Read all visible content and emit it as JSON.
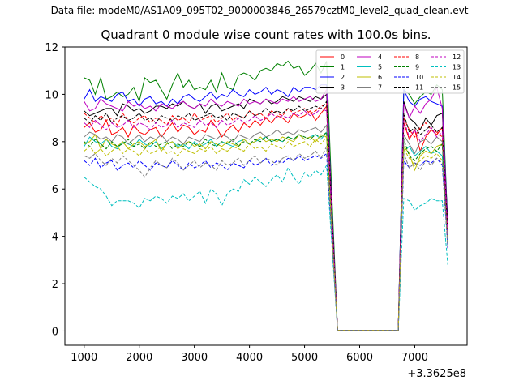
{
  "header": {
    "file_label": "Data file: modeM0/AS1A09_095T02_9000003846_26579cztM0_level2_quad_clean.evt"
  },
  "chart_data": {
    "type": "line",
    "title": "Quadrant 0 module wise count rates with 100.0s bins.",
    "xlabel": "",
    "ylabel": "",
    "offset_label": "+3.3625e8",
    "xlim": [
      650,
      7950
    ],
    "ylim": [
      -0.6,
      12
    ],
    "xticks": [
      1000,
      2000,
      3000,
      4000,
      5000,
      6000,
      7000
    ],
    "yticks": [
      0,
      2,
      4,
      6,
      8,
      10,
      12
    ],
    "legend_position": "top-right",
    "x": [
      1000,
      1100,
      1200,
      1300,
      1400,
      1500,
      1600,
      1700,
      1800,
      1900,
      2000,
      2100,
      2200,
      2300,
      2400,
      2500,
      2600,
      2700,
      2800,
      2900,
      3000,
      3100,
      3200,
      3300,
      3400,
      3500,
      3600,
      3700,
      3800,
      3900,
      4000,
      4100,
      4200,
      4300,
      4400,
      4500,
      4600,
      4700,
      4800,
      4900,
      5000,
      5100,
      5200,
      5300,
      5400,
      5500,
      5600,
      5700,
      5800,
      5900,
      6000,
      6100,
      6200,
      6300,
      6400,
      6500,
      6600,
      6700,
      6800,
      6900,
      7000,
      7100,
      7200,
      7300,
      7400,
      7500,
      7600
    ],
    "series": [
      {
        "name": "0",
        "color": "#ff0000",
        "dash": "solid",
        "values": [
          8.6,
          8.8,
          8.4,
          8.5,
          8.9,
          8.3,
          8.4,
          8.6,
          8.2,
          8.7,
          8.4,
          8.3,
          8.5,
          8.6,
          8.2,
          8.5,
          8.8,
          8.4,
          8.7,
          8.6,
          8.3,
          8.5,
          8.4,
          8.9,
          8.6,
          8.2,
          8.5,
          8.7,
          8.4,
          8.8,
          8.6,
          8.9,
          8.7,
          9.0,
          8.8,
          9.1,
          9.0,
          8.8,
          9.2,
          9.0,
          9.1,
          9.3,
          8.9,
          9.2,
          9.5,
          4.5,
          0.02,
          0.02,
          0.02,
          0.02,
          0.02,
          0.02,
          0.02,
          0.02,
          0.02,
          0.02,
          0.02,
          0.02,
          8.8,
          8.1,
          8.5,
          7.6,
          8.2,
          8.5,
          8.3,
          8.6,
          3.5
        ]
      },
      {
        "name": "1",
        "color": "#008000",
        "dash": "solid",
        "values": [
          10.7,
          10.6,
          10.0,
          10.7,
          9.8,
          9.9,
          10.1,
          9.9,
          10.0,
          10.3,
          9.7,
          10.7,
          10.5,
          10.6,
          10.2,
          9.8,
          10.4,
          10.9,
          10.3,
          10.6,
          10.2,
          10.3,
          10.2,
          10.6,
          10.1,
          10.9,
          10.3,
          10.2,
          10.8,
          10.9,
          10.8,
          10.6,
          11.0,
          11.1,
          11.0,
          11.3,
          11.2,
          11.4,
          11.1,
          11.2,
          10.8,
          11.0,
          11.3,
          10.9,
          11.4,
          5.5,
          0.02,
          0.02,
          0.02,
          0.02,
          0.02,
          0.02,
          0.02,
          0.02,
          0.02,
          0.02,
          0.02,
          0.02,
          10.2,
          10.0,
          9.6,
          9.9,
          10.1,
          10.0,
          10.4,
          10.2,
          4.4
        ]
      },
      {
        "name": "2",
        "color": "#0000ff",
        "dash": "solid",
        "values": [
          9.8,
          10.2,
          9.7,
          9.9,
          9.8,
          9.7,
          10.0,
          10.1,
          9.7,
          9.8,
          9.5,
          9.8,
          9.9,
          9.6,
          9.7,
          9.5,
          9.8,
          9.6,
          9.9,
          10.0,
          9.8,
          9.7,
          9.9,
          10.1,
          9.8,
          10.0,
          9.9,
          10.2,
          10.0,
          9.9,
          10.2,
          10.0,
          10.1,
          10.3,
          10.0,
          10.2,
          10.1,
          9.9,
          10.3,
          10.1,
          10.3,
          10.3,
          10.2,
          10.4,
          10.4,
          5.0,
          0.02,
          0.02,
          0.02,
          0.02,
          0.02,
          0.02,
          0.02,
          0.02,
          0.02,
          0.02,
          0.02,
          0.02,
          10.2,
          9.7,
          9.5,
          9.8,
          9.9,
          9.7,
          9.6,
          9.5,
          4.5
        ]
      },
      {
        "name": "3",
        "color": "#000000",
        "dash": "solid",
        "values": [
          9.3,
          9.1,
          9.2,
          9.3,
          9.4,
          9.4,
          9.1,
          9.6,
          9.5,
          9.3,
          9.4,
          9.2,
          9.3,
          9.5,
          9.5,
          9.4,
          9.6,
          9.5,
          9.7,
          9.5,
          9.4,
          9.6,
          9.2,
          9.5,
          9.6,
          9.3,
          9.4,
          9.5,
          9.6,
          9.4,
          9.8,
          9.7,
          9.6,
          9.8,
          9.6,
          9.7,
          9.9,
          9.8,
          9.7,
          9.9,
          9.8,
          9.7,
          9.9,
          9.8,
          10.0,
          4.8,
          0.02,
          0.02,
          0.02,
          0.02,
          0.02,
          0.02,
          0.02,
          0.02,
          0.02,
          0.02,
          0.02,
          0.02,
          9.7,
          9.0,
          8.8,
          8.5,
          9.0,
          8.7,
          9.1,
          9.2,
          4.5
        ]
      },
      {
        "name": "4",
        "color": "#bf00bf",
        "dash": "solid",
        "values": [
          9.7,
          9.3,
          9.4,
          9.8,
          9.6,
          9.5,
          9.4,
          9.3,
          9.7,
          9.5,
          9.6,
          9.4,
          9.5,
          9.3,
          9.6,
          9.5,
          9.4,
          9.6,
          9.7,
          9.5,
          9.4,
          9.6,
          9.5,
          9.8,
          9.6,
          9.5,
          9.7,
          9.6,
          9.5,
          9.8,
          9.6,
          9.7,
          9.6,
          9.8,
          9.7,
          9.6,
          9.8,
          9.7,
          9.9,
          9.7,
          9.8,
          9.9,
          9.7,
          9.8,
          10.2,
          4.9,
          0.02,
          0.02,
          0.02,
          0.02,
          0.02,
          0.02,
          0.02,
          0.02,
          0.02,
          0.02,
          0.02,
          0.02,
          9.6,
          9.0,
          9.5,
          9.2,
          9.6,
          9.8,
          10.3,
          9.4,
          4.2
        ]
      },
      {
        "name": "5",
        "color": "#00bfbf",
        "dash": "solid",
        "values": [
          7.8,
          8.2,
          8.0,
          7.9,
          8.1,
          7.8,
          7.7,
          8.0,
          7.9,
          7.8,
          8.1,
          7.9,
          7.8,
          8.0,
          7.7,
          7.9,
          8.0,
          7.8,
          7.9,
          7.7,
          8.0,
          7.8,
          7.9,
          8.1,
          7.8,
          8.0,
          7.9,
          7.8,
          8.0,
          8.1,
          7.9,
          8.0,
          8.1,
          8.2,
          8.0,
          8.1,
          8.0,
          8.2,
          8.1,
          8.3,
          8.1,
          8.2,
          8.3,
          8.1,
          8.4,
          4.0,
          0.02,
          0.02,
          0.02,
          0.02,
          0.02,
          0.02,
          0.02,
          0.02,
          0.02,
          0.02,
          0.02,
          0.02,
          7.6,
          7.8,
          7.4,
          7.6,
          7.8,
          7.5,
          7.6,
          7.4,
          3.6
        ]
      },
      {
        "name": "6",
        "color": "#bfbf00",
        "dash": "solid",
        "values": [
          7.9,
          8.0,
          8.3,
          7.7,
          8.1,
          7.9,
          7.8,
          8.0,
          7.7,
          7.9,
          8.0,
          7.8,
          7.9,
          8.1,
          7.6,
          7.9,
          8.0,
          7.7,
          7.9,
          8.0,
          7.8,
          7.9,
          7.7,
          8.0,
          7.9,
          7.8,
          8.0,
          7.9,
          7.8,
          8.1,
          7.9,
          8.0,
          8.2,
          8.0,
          8.1,
          8.0,
          8.2,
          8.1,
          8.0,
          8.3,
          8.1,
          8.2,
          8.0,
          8.3,
          8.2,
          4.0,
          0.02,
          0.02,
          0.02,
          0.02,
          0.02,
          0.02,
          0.02,
          0.02,
          0.02,
          0.02,
          0.02,
          0.02,
          7.8,
          7.5,
          6.8,
          7.4,
          7.6,
          7.5,
          7.8,
          7.9,
          4.0
        ]
      },
      {
        "name": "7",
        "color": "#7f7f7f",
        "dash": "solid",
        "values": [
          8.2,
          8.4,
          8.3,
          8.1,
          8.2,
          8.0,
          8.3,
          8.2,
          7.9,
          8.1,
          8.3,
          8.0,
          8.2,
          8.1,
          8.3,
          8.0,
          8.2,
          8.1,
          7.9,
          8.2,
          8.1,
          8.0,
          8.3,
          8.2,
          8.1,
          8.3,
          8.2,
          8.0,
          8.3,
          8.2,
          8.1,
          8.3,
          8.4,
          8.2,
          8.3,
          8.5,
          8.3,
          8.4,
          8.3,
          8.5,
          8.4,
          8.5,
          8.6,
          8.4,
          8.7,
          4.2,
          0.02,
          0.02,
          0.02,
          0.02,
          0.02,
          0.02,
          0.02,
          0.02,
          0.02,
          0.02,
          0.02,
          0.02,
          8.3,
          7.9,
          7.5,
          8.0,
          8.1,
          7.9,
          8.2,
          8.0,
          3.8
        ]
      },
      {
        "name": "8",
        "color": "#ff0000",
        "dash": "dashed",
        "values": [
          9.2,
          9.0,
          8.8,
          9.1,
          8.9,
          9.0,
          8.7,
          9.2,
          8.9,
          8.8,
          9.0,
          9.1,
          8.8,
          9.0,
          8.9,
          8.7,
          9.1,
          8.9,
          9.0,
          8.8,
          9.2,
          8.9,
          9.0,
          9.1,
          8.8,
          9.0,
          9.2,
          8.9,
          9.1,
          9.0,
          9.3,
          9.1,
          9.2,
          9.0,
          9.3,
          9.2,
          9.1,
          9.4,
          9.2,
          9.3,
          9.4,
          9.2,
          9.3,
          9.5,
          9.6,
          4.7,
          0.02,
          0.02,
          0.02,
          0.02,
          0.02,
          0.02,
          0.02,
          0.02,
          0.02,
          0.02,
          0.02,
          0.02,
          9.0,
          8.5,
          8.2,
          8.6,
          8.8,
          8.5,
          8.4,
          8.2,
          4.1
        ]
      },
      {
        "name": "9",
        "color": "#008000",
        "dash": "dashed",
        "values": [
          8.0,
          7.8,
          8.1,
          7.9,
          7.7,
          8.0,
          7.8,
          7.9,
          8.1,
          7.8,
          7.9,
          7.7,
          8.0,
          7.8,
          7.9,
          8.0,
          7.7,
          7.9,
          7.8,
          8.0,
          7.9,
          7.8,
          8.1,
          7.9,
          7.8,
          8.0,
          7.9,
          8.1,
          7.8,
          8.0,
          7.9,
          8.1,
          8.0,
          8.2,
          8.0,
          8.1,
          8.0,
          8.2,
          8.1,
          8.3,
          8.2,
          8.1,
          8.3,
          8.2,
          8.4,
          4.1,
          0.02,
          0.02,
          0.02,
          0.02,
          0.02,
          0.02,
          0.02,
          0.02,
          0.02,
          0.02,
          0.02,
          0.02,
          8.1,
          7.4,
          7.2,
          7.5,
          7.7,
          7.8,
          7.6,
          7.9,
          3.9
        ]
      },
      {
        "name": "10",
        "color": "#0000ff",
        "dash": "dashed",
        "values": [
          7.2,
          7.0,
          7.3,
          6.9,
          7.1,
          7.2,
          6.8,
          7.0,
          7.1,
          6.9,
          7.2,
          7.0,
          6.8,
          7.1,
          7.0,
          6.9,
          7.2,
          7.0,
          6.8,
          7.1,
          6.9,
          7.0,
          7.2,
          6.9,
          7.1,
          7.0,
          6.8,
          7.1,
          7.0,
          6.9,
          7.2,
          7.0,
          7.1,
          7.3,
          7.0,
          7.2,
          7.1,
          7.3,
          7.2,
          7.4,
          7.2,
          7.3,
          7.4,
          7.3,
          7.5,
          3.7,
          0.02,
          0.02,
          0.02,
          0.02,
          0.02,
          0.02,
          0.02,
          0.02,
          0.02,
          0.02,
          0.02,
          0.02,
          7.2,
          6.9,
          7.1,
          7.0,
          7.2,
          7.1,
          7.3,
          7.0,
          3.5
        ]
      },
      {
        "name": "11",
        "color": "#000000",
        "dash": "dashed",
        "values": [
          9.0,
          8.8,
          9.1,
          8.9,
          9.2,
          8.8,
          9.0,
          9.1,
          8.9,
          9.0,
          9.2,
          8.9,
          9.0,
          8.8,
          9.1,
          9.0,
          8.9,
          9.1,
          9.0,
          9.2,
          8.9,
          9.0,
          9.1,
          9.2,
          9.0,
          9.1,
          8.9,
          9.2,
          9.1,
          9.0,
          9.3,
          9.1,
          9.2,
          9.4,
          9.2,
          9.3,
          9.2,
          9.4,
          9.3,
          9.5,
          9.3,
          9.4,
          9.5,
          9.4,
          9.7,
          4.8,
          0.02,
          0.02,
          0.02,
          0.02,
          0.02,
          0.02,
          0.02,
          0.02,
          0.02,
          0.02,
          0.02,
          0.02,
          9.2,
          8.4,
          8.6,
          8.3,
          8.5,
          8.7,
          8.4,
          8.6,
          4.2
        ]
      },
      {
        "name": "12",
        "color": "#bf00bf",
        "dash": "dashed",
        "values": [
          8.8,
          8.6,
          8.9,
          8.7,
          8.5,
          8.8,
          8.6,
          8.7,
          8.9,
          8.6,
          8.8,
          8.7,
          8.5,
          8.8,
          8.6,
          8.7,
          8.9,
          8.6,
          8.8,
          8.7,
          8.6,
          8.9,
          8.7,
          8.8,
          8.6,
          8.9,
          8.7,
          8.8,
          9.0,
          8.8,
          8.9,
          9.1,
          8.9,
          9.0,
          9.2,
          9.0,
          9.1,
          9.0,
          9.2,
          9.1,
          9.3,
          9.1,
          9.2,
          9.4,
          9.3,
          4.6,
          0.02,
          0.02,
          0.02,
          0.02,
          0.02,
          0.02,
          0.02,
          0.02,
          0.02,
          0.02,
          0.02,
          0.02,
          8.9,
          8.2,
          8.5,
          8.0,
          8.3,
          8.6,
          8.2,
          8.4,
          4.0
        ]
      },
      {
        "name": "13",
        "color": "#00bfbf",
        "dash": "dashed",
        "values": [
          6.5,
          6.3,
          6.1,
          6.0,
          5.7,
          5.3,
          5.5,
          5.5,
          5.5,
          5.4,
          5.2,
          5.6,
          5.5,
          5.7,
          5.6,
          5.4,
          5.7,
          5.6,
          5.8,
          5.5,
          5.7,
          5.9,
          5.4,
          6.0,
          5.8,
          5.3,
          5.8,
          6.0,
          5.9,
          6.4,
          6.2,
          6.5,
          6.3,
          6.1,
          6.4,
          6.6,
          6.3,
          6.9,
          6.5,
          6.2,
          6.7,
          6.5,
          6.8,
          6.6,
          7.0,
          3.5,
          0.02,
          0.02,
          0.02,
          0.02,
          0.02,
          0.02,
          0.02,
          0.02,
          0.02,
          0.02,
          0.02,
          0.02,
          5.6,
          5.5,
          5.1,
          5.3,
          5.4,
          5.6,
          5.5,
          5.5,
          2.8
        ]
      },
      {
        "name": "14",
        "color": "#bfbf00",
        "dash": "dashed",
        "values": [
          7.6,
          7.8,
          7.5,
          7.7,
          7.4,
          7.6,
          7.8,
          7.5,
          7.7,
          7.6,
          7.4,
          7.7,
          7.5,
          7.6,
          7.8,
          7.5,
          7.6,
          7.4,
          7.7,
          7.6,
          7.5,
          7.7,
          7.6,
          7.8,
          7.5,
          7.7,
          7.6,
          7.8,
          7.7,
          7.6,
          7.9,
          7.7,
          7.8,
          7.6,
          7.9,
          7.8,
          7.7,
          8.0,
          7.8,
          7.9,
          8.0,
          7.8,
          8.1,
          7.9,
          8.2,
          4.0,
          0.02,
          0.02,
          0.02,
          0.02,
          0.02,
          0.02,
          0.02,
          0.02,
          0.02,
          0.02,
          0.02,
          0.02,
          7.7,
          7.3,
          7.0,
          7.2,
          7.4,
          7.3,
          7.5,
          7.2,
          3.6
        ]
      },
      {
        "name": "15",
        "color": "#7f7f7f",
        "dash": "dashed",
        "values": [
          7.4,
          7.3,
          7.5,
          7.2,
          7.0,
          7.3,
          7.1,
          7.4,
          7.2,
          7.0,
          6.8,
          6.5,
          6.9,
          7.2,
          7.0,
          6.9,
          7.3,
          7.1,
          6.8,
          7.0,
          7.2,
          6.9,
          7.1,
          7.0,
          6.8,
          7.2,
          7.0,
          7.1,
          7.3,
          7.0,
          7.2,
          7.4,
          7.1,
          7.3,
          7.2,
          7.0,
          7.3,
          7.4,
          7.2,
          7.5,
          7.3,
          7.4,
          7.6,
          7.3,
          7.8,
          3.9,
          0.02,
          0.02,
          0.02,
          0.02,
          0.02,
          0.02,
          0.02,
          0.02,
          0.02,
          0.02,
          0.02,
          0.02,
          7.5,
          6.9,
          7.1,
          6.8,
          7.2,
          7.0,
          7.3,
          7.1,
          3.6
        ]
      }
    ]
  }
}
